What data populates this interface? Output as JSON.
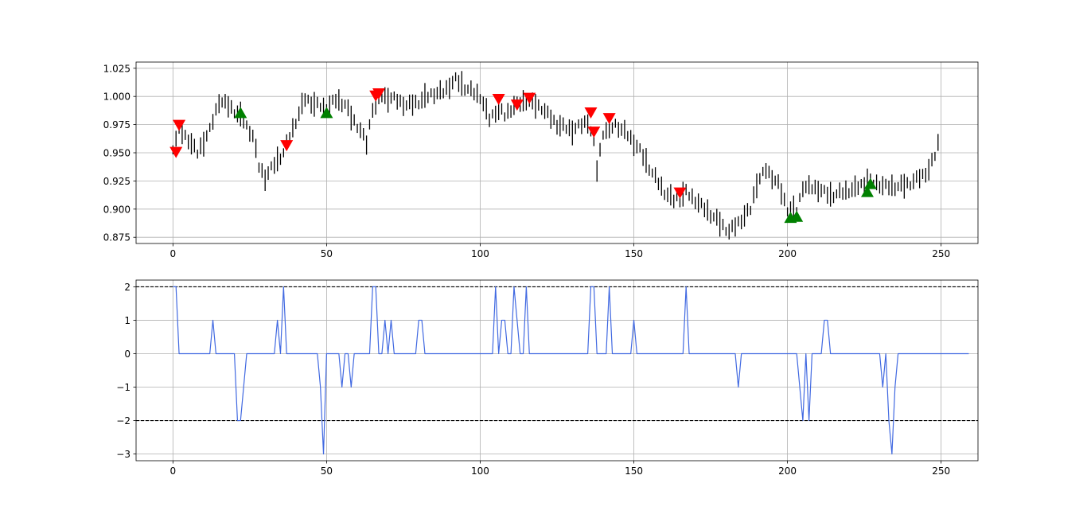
{
  "chart_data": [
    {
      "type": "ohlc",
      "title": "",
      "xlabel": "",
      "ylabel": "",
      "xlim": [
        -12,
        262
      ],
      "ylim": [
        0.8695,
        1.0305
      ],
      "x_ticks": [
        0,
        50,
        100,
        150,
        200,
        250
      ],
      "y_ticks": [
        0.875,
        0.9,
        0.925,
        0.95,
        0.975,
        1.0,
        1.025
      ],
      "x_tick_labels": [
        "0",
        "50",
        "100",
        "150",
        "200",
        "250"
      ],
      "y_tick_labels": [
        "0.875",
        "0.900",
        "0.925",
        "0.950",
        "0.975",
        "1.000",
        "1.025"
      ],
      "grid": true,
      "bar_color": "#000000",
      "price_waypoints": [
        [
          0,
          0.955
        ],
        [
          2,
          0.97
        ],
        [
          5,
          0.962
        ],
        [
          8,
          0.95
        ],
        [
          12,
          0.97
        ],
        [
          15,
          0.996
        ],
        [
          18,
          0.992
        ],
        [
          22,
          0.982
        ],
        [
          26,
          0.965
        ],
        [
          28,
          0.938
        ],
        [
          30,
          0.928
        ],
        [
          33,
          0.94
        ],
        [
          36,
          0.95
        ],
        [
          40,
          0.978
        ],
        [
          43,
          0.998
        ],
        [
          46,
          0.993
        ],
        [
          50,
          0.99
        ],
        [
          53,
          0.997
        ],
        [
          56,
          0.993
        ],
        [
          58,
          0.982
        ],
        [
          61,
          0.97
        ],
        [
          63,
          0.958
        ],
        [
          65,
          0.99
        ],
        [
          68,
          1.0
        ],
        [
          72,
          0.998
        ],
        [
          76,
          0.992
        ],
        [
          80,
          0.995
        ],
        [
          84,
          1.002
        ],
        [
          88,
          1.004
        ],
        [
          92,
          1.015
        ],
        [
          95,
          1.008
        ],
        [
          100,
          1.0
        ],
        [
          103,
          0.98
        ],
        [
          106,
          0.99
        ],
        [
          108,
          0.983
        ],
        [
          111,
          0.992
        ],
        [
          115,
          0.996
        ],
        [
          120,
          0.99
        ],
        [
          125,
          0.975
        ],
        [
          130,
          0.97
        ],
        [
          135,
          0.978
        ],
        [
          137,
          0.96
        ],
        [
          138,
          0.935
        ],
        [
          140,
          0.968
        ],
        [
          144,
          0.975
        ],
        [
          148,
          0.966
        ],
        [
          152,
          0.952
        ],
        [
          156,
          0.932
        ],
        [
          160,
          0.915
        ],
        [
          163,
          0.908
        ],
        [
          167,
          0.915
        ],
        [
          172,
          0.903
        ],
        [
          176,
          0.893
        ],
        [
          181,
          0.88
        ],
        [
          184,
          0.888
        ],
        [
          188,
          0.9
        ],
        [
          190,
          0.923
        ],
        [
          193,
          0.935
        ],
        [
          197,
          0.922
        ],
        [
          200,
          0.9
        ],
        [
          203,
          0.898
        ],
        [
          205,
          0.92
        ],
        [
          210,
          0.918
        ],
        [
          214,
          0.912
        ],
        [
          218,
          0.915
        ],
        [
          222,
          0.918
        ],
        [
          226,
          0.925
        ],
        [
          232,
          0.92
        ],
        [
          236,
          0.92
        ],
        [
          240,
          0.923
        ],
        [
          244,
          0.93
        ],
        [
          246,
          0.935
        ],
        [
          248,
          0.948
        ],
        [
          249,
          0.958
        ]
      ],
      "bar_range_pattern": [
        0.008,
        0.014,
        0.011,
        0.017,
        0.009,
        0.013,
        0.019,
        0.012,
        0.008,
        0.015,
        0.022,
        0.01
      ],
      "markers": {
        "buy": {
          "color": "#008000",
          "shape": "triangle-up",
          "points": [
            [
              22,
              0.985
            ],
            [
              50,
              0.985
            ],
            [
              201,
              0.892
            ],
            [
              203,
              0.893
            ],
            [
              226,
              0.915
            ],
            [
              227,
              0.922
            ]
          ]
        },
        "sell": {
          "color": "#ff0000",
          "shape": "triangle-down",
          "points": [
            [
              1,
              0.951
            ],
            [
              2,
              0.975
            ],
            [
              37,
              0.957
            ],
            [
              66,
              1.001
            ],
            [
              67,
              1.003
            ],
            [
              106,
              0.998
            ],
            [
              112,
              0.993
            ],
            [
              116,
              0.999
            ],
            [
              136,
              0.986
            ],
            [
              137,
              0.969
            ],
            [
              142,
              0.981
            ],
            [
              165,
              0.915
            ]
          ]
        }
      }
    },
    {
      "type": "line",
      "title": "",
      "xlabel": "",
      "ylabel": "",
      "xlim": [
        -12,
        262
      ],
      "ylim": [
        -3.2,
        2.2
      ],
      "x_ticks": [
        0,
        50,
        100,
        150,
        200,
        250
      ],
      "y_ticks": [
        -3,
        -2,
        -1,
        0,
        1,
        2
      ],
      "x_tick_labels": [
        "0",
        "50",
        "100",
        "150",
        "200",
        "250"
      ],
      "y_tick_labels": [
        "−3",
        "−2",
        "−1",
        "0",
        "1",
        "2"
      ],
      "grid": true,
      "line_color": "#4169e1",
      "reference_lines": [
        {
          "y": 2,
          "color": "#000000",
          "style": "dashed"
        },
        {
          "y": -2,
          "color": "#000000",
          "style": "dashed"
        }
      ],
      "series": [
        {
          "values": [
            2,
            2,
            0,
            0,
            0,
            0,
            0,
            0,
            0,
            0,
            0,
            0,
            0,
            1,
            0,
            0,
            0,
            0,
            0,
            0,
            0,
            -2,
            -2,
            -1,
            0,
            0,
            0,
            0,
            0,
            0,
            0,
            0,
            0,
            0,
            1,
            0,
            2,
            0,
            0,
            0,
            0,
            0,
            0,
            0,
            0,
            0,
            0,
            0,
            -1,
            -3,
            0,
            0,
            0,
            0,
            0,
            -1,
            0,
            0,
            -1,
            0,
            0,
            0,
            0,
            0,
            0,
            2,
            2,
            0,
            0,
            1,
            0,
            1,
            0,
            0,
            0,
            0,
            0,
            0,
            0,
            0,
            1,
            1,
            0,
            0,
            0,
            0,
            0,
            0,
            0,
            0,
            0,
            0,
            0,
            0,
            0,
            0,
            0,
            0,
            0,
            0,
            0,
            0,
            0,
            0,
            0,
            2,
            0,
            1,
            1,
            0,
            0,
            2,
            1,
            0,
            0,
            2,
            0,
            0,
            0,
            0,
            0,
            0,
            0,
            0,
            0,
            0,
            0,
            0,
            0,
            0,
            0,
            0,
            0,
            0,
            0,
            0,
            2,
            2,
            0,
            0,
            0,
            0,
            2,
            0,
            0,
            0,
            0,
            0,
            0,
            0,
            1,
            0,
            0,
            0,
            0,
            0,
            0,
            0,
            0,
            0,
            0,
            0,
            0,
            0,
            0,
            0,
            0,
            2,
            0,
            0,
            0,
            0,
            0,
            0,
            0,
            0,
            0,
            0,
            0,
            0,
            0,
            0,
            0,
            0,
            -1,
            0,
            0,
            0,
            0,
            0,
            0,
            0,
            0,
            0,
            0,
            0,
            0,
            0,
            0,
            0,
            0,
            0,
            0,
            0,
            -1,
            -2,
            0,
            -2,
            0,
            0,
            0,
            0,
            1,
            1,
            0,
            0,
            0,
            0,
            0,
            0,
            0,
            0,
            0,
            0,
            0,
            0,
            0,
            0,
            0,
            0,
            0,
            -1,
            0,
            -2,
            -3,
            -1,
            0,
            0,
            0,
            0,
            0,
            0,
            0,
            0,
            0,
            0,
            0,
            0,
            0,
            0,
            0,
            0,
            0,
            0,
            0,
            0,
            0,
            0,
            0,
            0
          ]
        }
      ]
    }
  ]
}
